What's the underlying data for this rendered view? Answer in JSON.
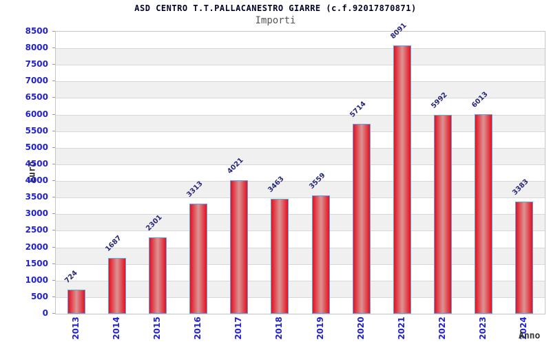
{
  "chart_data": {
    "type": "bar",
    "title": "ASD CENTRO T.T.PALLACANESTRO GIARRE (c.f.92017870871)",
    "subtitle": "Importi",
    "xlabel": "Anno",
    "ylabel": "Euro",
    "categories": [
      "2013",
      "2014",
      "2015",
      "2016",
      "2017",
      "2018",
      "2019",
      "2020",
      "2021",
      "2022",
      "2023",
      "2024"
    ],
    "values": [
      724,
      1687,
      2301,
      3313,
      4021,
      3463,
      3559,
      5714,
      8091,
      5992,
      6013,
      3383
    ],
    "ylim": [
      0,
      8500
    ],
    "ytick_step": 500,
    "yticks": [
      0,
      500,
      1000,
      1500,
      2000,
      2500,
      3000,
      3500,
      4000,
      4500,
      5000,
      5500,
      6000,
      6500,
      7000,
      7500,
      8000,
      8500
    ],
    "grid": true,
    "legend": "none",
    "bands_alternating": true,
    "colors": {
      "bar_edge": "#e3101f",
      "bar_mid": "#dc9494",
      "bar_border": "#5ea5e8",
      "axis_text": "#2222cc",
      "value_text": "#28287a",
      "band_alt": "#f0f0f0",
      "band_main": "#ffffff",
      "grid_line": "#d8d8d8",
      "plot_border": "#c4c4c4",
      "tick": "#999999",
      "title": "#000028",
      "subtitle": "#555555",
      "axis_title": "#333333"
    }
  }
}
